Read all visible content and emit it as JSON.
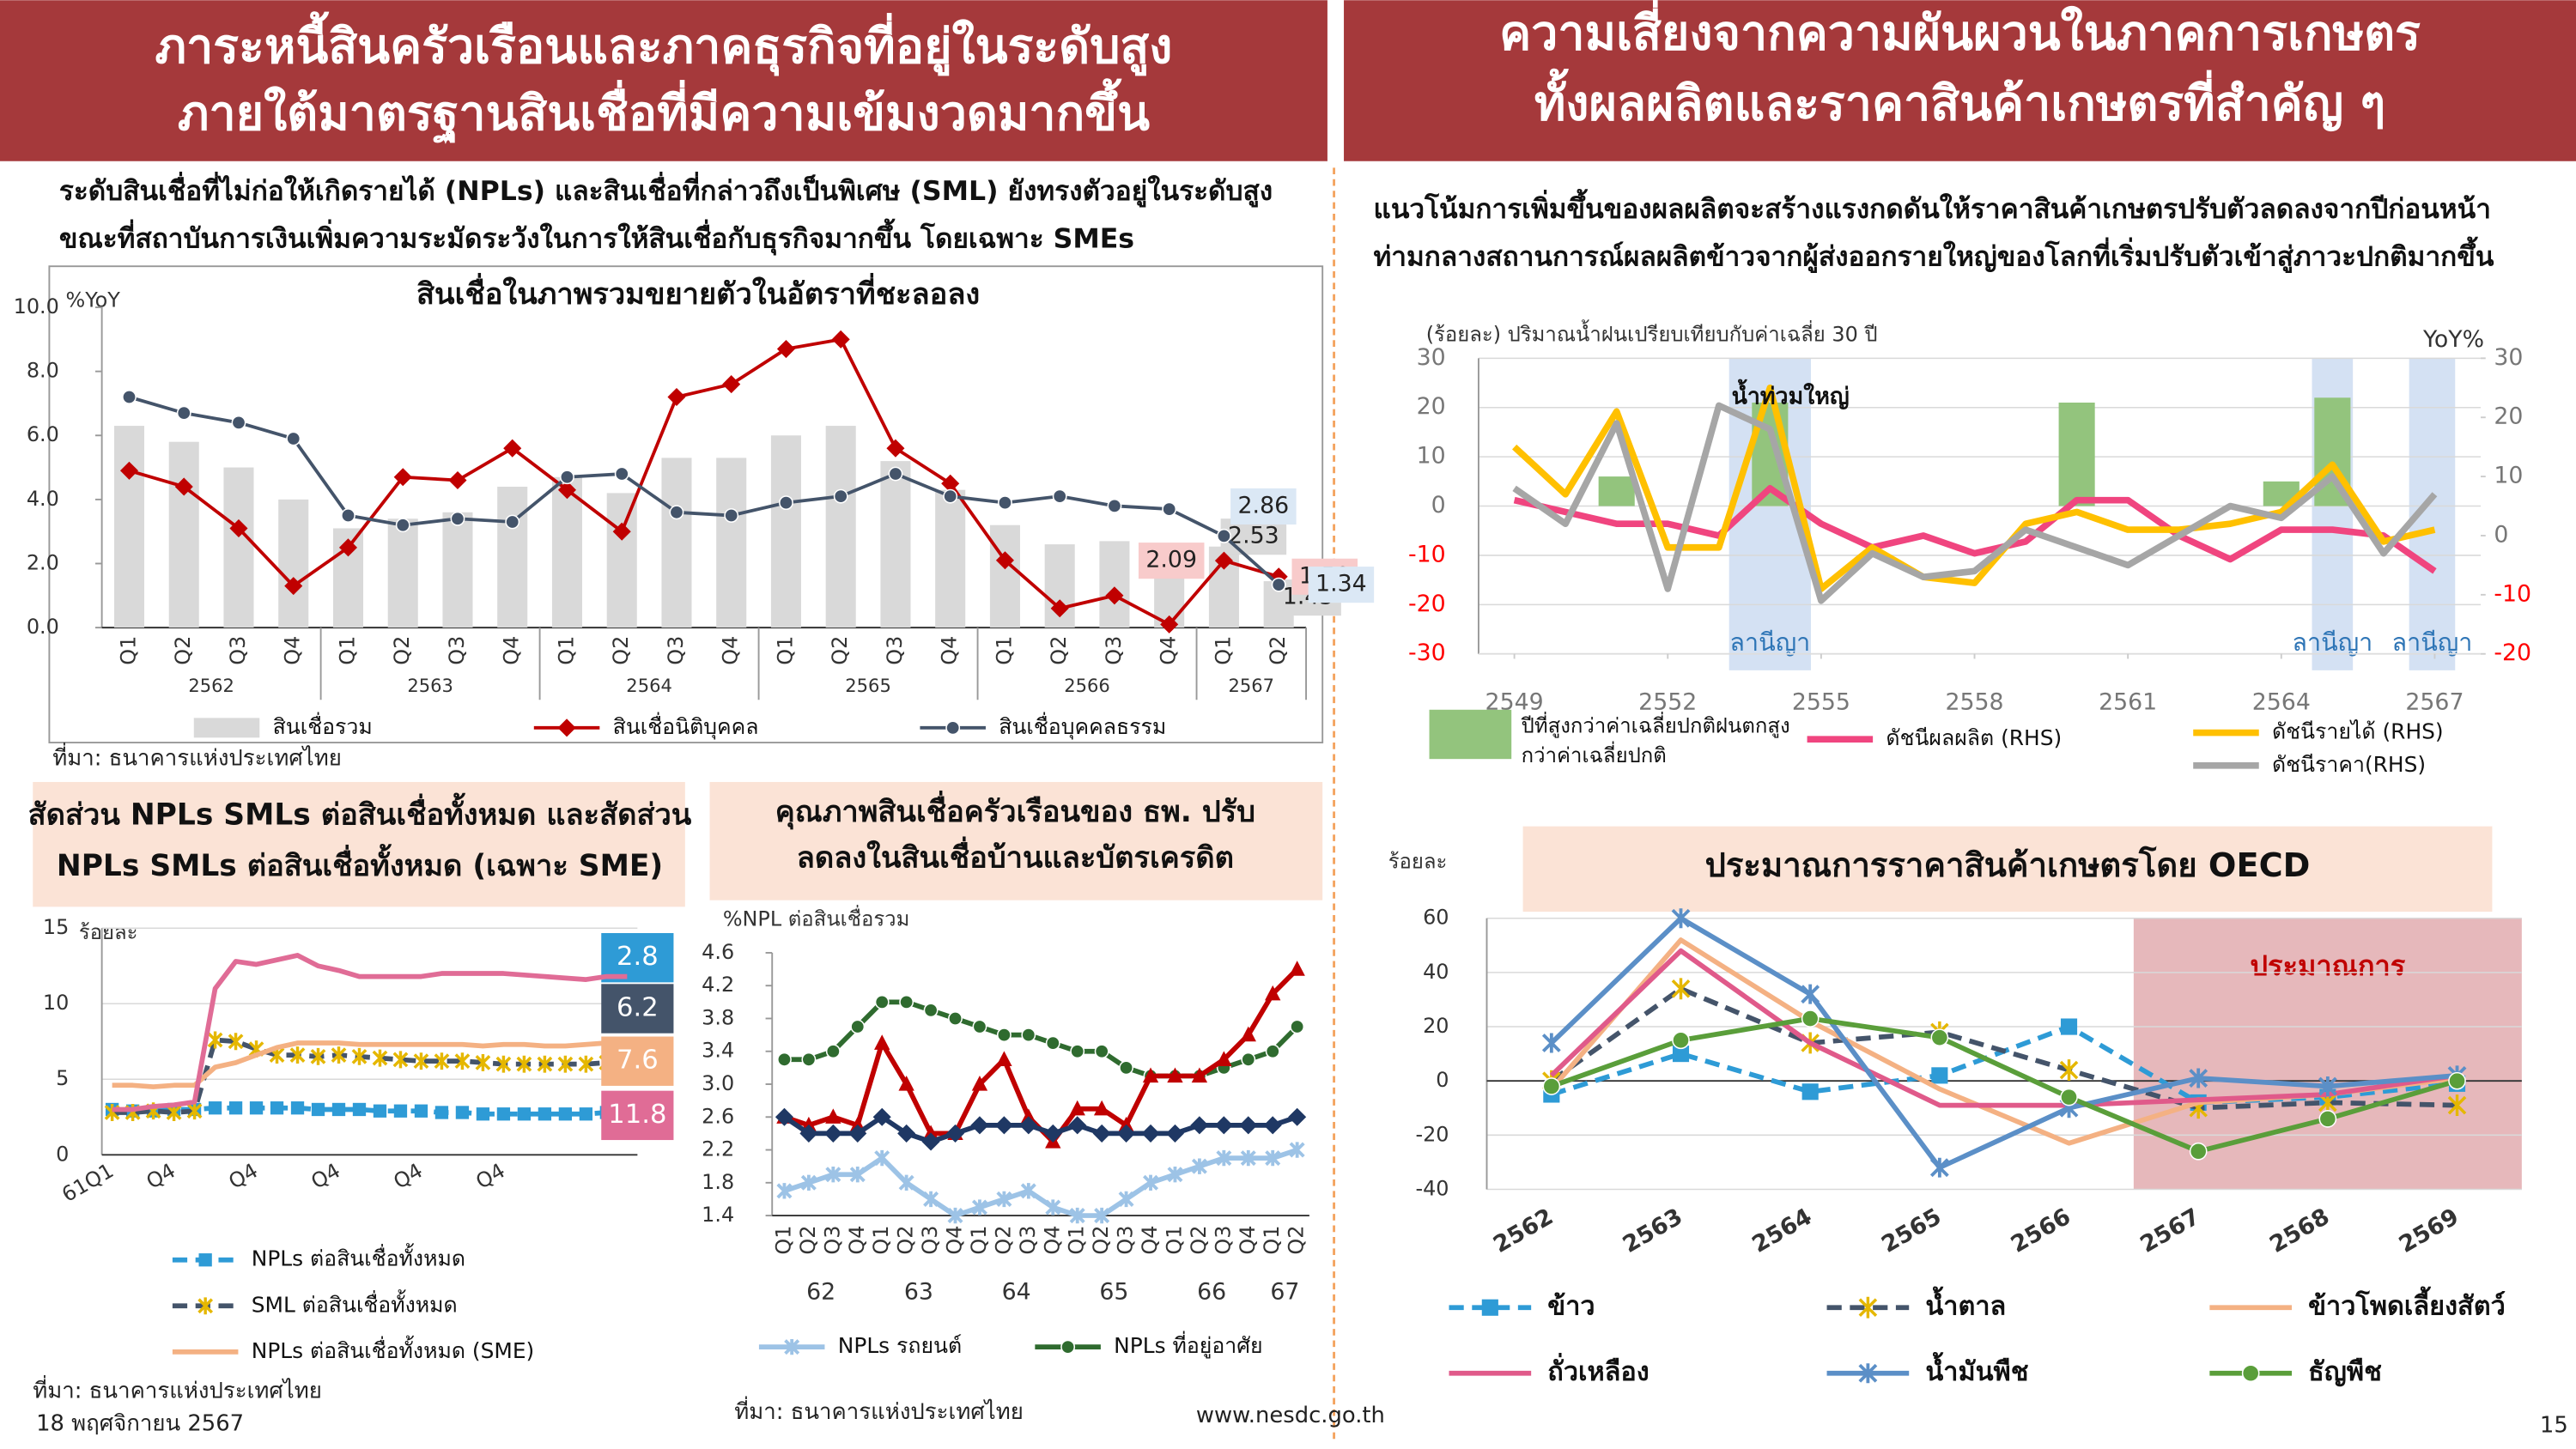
{
  "header": {
    "left": [
      "ภาระหนี้สินครัวเรือนและภาคธุรกิจที่อยู่ในระดับสูง",
      "ภายใต้มาตรฐานสินเชื่อที่มีความเข้มงวดมากขึ้น"
    ],
    "right": [
      "ความเสี่ยงจากความผันผวนในภาคการเกษตร",
      "ทั้งผลผลิตและราคาสินค้าเกษตรที่สำคัญ ๆ"
    ]
  },
  "intro": {
    "left": [
      "ระดับสินเชื่อที่ไม่ก่อให้เกิดรายได้ (NPLs) และสินเชื่อที่กล่าวถึงเป็นพิเศษ (SML) ยังทรงตัวอยู่ในระดับสูง",
      "ขณะที่สถาบันการเงินเพิ่มความระมัดระวังในการให้สินเชื่อกับธุรกิจมากขึ้น โดยเฉพาะ SMEs"
    ],
    "right": [
      "แนวโน้มการเพิ่มขึ้นของผลผลิตจะสร้างแรงกดดันให้ราคาสินค้าเกษตรปรับตัวลดลงจากปีก่อนหน้า",
      "ท่ามกลางสถานการณ์ผลผลิตข้าวจากผู้ส่งออกรายใหญ่ของโลกที่เริ่มปรับตัวเข้าสู่ภาวะปกติมากขึ้น"
    ]
  },
  "sources": [
    "ที่มา: ธนาคารแห่งประเทศไทย",
    "ที่มา: ธนาคารแห่งประเทศไทย",
    "ที่มา: ธนาคารแห่งประเทศไทย"
  ],
  "footer": {
    "date": "18 พฤศจิกายน 2567",
    "url": "www.nesdc.go.th",
    "page": "15"
  },
  "chart_data": [
    {
      "type": "combo",
      "title": [
        "สินเชื่อในภาพรวมขยายตัวในอัตราที่ชะลอลง"
      ],
      "y_label": "%YoY",
      "categories": [
        "Q1",
        "Q2",
        "Q3",
        "Q4",
        "Q1",
        "Q2",
        "Q3",
        "Q4",
        "Q1",
        "Q2",
        "Q3",
        "Q4",
        "Q1",
        "Q2",
        "Q3",
        "Q4",
        "Q1",
        "Q2",
        "Q3",
        "Q4",
        "Q1",
        "Q2"
      ],
      "x_groups": [
        "2562",
        "2563",
        "2564",
        "2565",
        "2566",
        "2567"
      ],
      "ylim": [
        0,
        10
      ],
      "yticks": [
        {
          "value": 0,
          "label": "0.0"
        },
        {
          "value": 2,
          "label": "2.0"
        },
        {
          "value": 4,
          "label": "4.0"
        },
        {
          "value": 6,
          "label": "6.0"
        },
        {
          "value": 8,
          "label": "8.0"
        },
        {
          "value": 10,
          "label": "10.0"
        }
      ],
      "grid": false,
      "series": [
        {
          "name": "สินเชื่อรวม",
          "kind": "bar",
          "color": "#d9d9d9",
          "values": [
            6.3,
            5.8,
            5.0,
            4.0,
            3.1,
            3.4,
            3.6,
            4.4,
            4.7,
            4.2,
            5.3,
            5.3,
            6.0,
            6.3,
            5.2,
            4.3,
            3.2,
            2.6,
            2.7,
            2.1,
            2.53,
            1.45
          ]
        },
        {
          "name": "สินเชื่อนิติบุคคล",
          "kind": "line",
          "marker": "diamond",
          "color": "#c00000",
          "values": [
            4.9,
            4.4,
            3.1,
            1.3,
            2.5,
            4.7,
            4.6,
            5.6,
            4.3,
            3.0,
            7.2,
            7.6,
            8.7,
            9.0,
            5.6,
            4.5,
            2.1,
            0.6,
            1.0,
            0.1,
            2.09,
            1.59
          ]
        },
        {
          "name": "สินเชื่อบุคคลธรรม",
          "kind": "line",
          "marker": "circle",
          "color": "#44546a",
          "values": [
            7.2,
            6.7,
            6.4,
            5.9,
            3.5,
            3.2,
            3.4,
            3.3,
            4.7,
            4.8,
            3.6,
            3.5,
            3.9,
            4.1,
            4.8,
            4.1,
            3.9,
            4.1,
            3.8,
            3.7,
            2.86,
            1.34
          ]
        }
      ]
    },
    {
      "type": "line",
      "title": [
        "สัดส่วน NPLs SMLs ต่อสินเชื่อทั้งหมด และสัดส่วน",
        "NPLs SMLs ต่อสินเชื่อทั้งหมด (เฉพาะ SME)"
      ],
      "y_label": "ร้อยละ",
      "categories": [
        "61Q1",
        null,
        null,
        "Q4",
        null,
        null,
        null,
        "Q4",
        null,
        null,
        null,
        "Q4",
        null,
        null,
        null,
        "Q4",
        null,
        null,
        null,
        "Q4",
        null,
        null,
        null,
        null,
        null,
        null
      ],
      "ylim": [
        0,
        15
      ],
      "yticks": [
        0,
        5,
        10,
        15
      ],
      "grid": true,
      "series": [
        {
          "name": "NPLs ต่อสินเชื่อทั้งหมด",
          "kind": "line",
          "marker": "square",
          "dash": true,
          "color": "#2e9bd6",
          "values": [
            3.0,
            2.9,
            2.9,
            3.0,
            3.0,
            3.1,
            3.1,
            3.1,
            3.1,
            3.1,
            3.0,
            3.0,
            3.0,
            2.9,
            2.9,
            2.9,
            2.8,
            2.8,
            2.7,
            2.7,
            2.7,
            2.7,
            2.7,
            2.7,
            2.8,
            2.8
          ]
        },
        {
          "name": "SML ต่อสินเชื่อทั้งหมด",
          "kind": "line",
          "marker": "star",
          "marker_color": "#e5b700",
          "dash": true,
          "color": "#44546a",
          "values": [
            2.8,
            2.8,
            2.9,
            2.8,
            2.9,
            7.6,
            7.5,
            7.0,
            6.6,
            6.6,
            6.5,
            6.6,
            6.5,
            6.4,
            6.3,
            6.2,
            6.2,
            6.2,
            6.1,
            6.0,
            6.0,
            6.0,
            6.0,
            6.0,
            6.1,
            6.2
          ]
        },
        {
          "name": "NPLs ต่อสินเชื่อทั้งหมด (SME)",
          "kind": "line",
          "marker": "none",
          "color": "#f4b183",
          "values": [
            4.6,
            4.6,
            4.5,
            4.6,
            4.6,
            5.8,
            6.1,
            6.6,
            7.1,
            7.4,
            7.4,
            7.4,
            7.3,
            7.3,
            7.3,
            7.3,
            7.3,
            7.3,
            7.2,
            7.3,
            7.3,
            7.2,
            7.2,
            7.3,
            7.4,
            7.6
          ]
        },
        {
          "kind": "line",
          "marker": "none",
          "color": "#e06c96",
          "values": [
            3.0,
            3.0,
            3.2,
            3.3,
            3.5,
            11.0,
            12.8,
            12.6,
            12.9,
            13.2,
            12.5,
            12.2,
            11.8,
            11.8,
            11.8,
            11.8,
            12.0,
            12.0,
            12.0,
            12.0,
            11.9,
            11.8,
            11.7,
            11.6,
            11.8,
            11.8
          ]
        }
      ]
    },
    {
      "type": "line",
      "title": [
        "คุณภาพสินเชื่อครัวเรือนของ ธพ. ปรับ",
        "ลดลงในสินเชื่อบ้านและบัตรเครดิต"
      ],
      "y_label": "%NPL ต่อสินเชื่อรวม",
      "categories": [
        "Q1",
        "Q2",
        "Q3",
        "Q4",
        "Q1",
        "Q2",
        "Q3",
        "Q4",
        "Q1",
        "Q2",
        "Q3",
        "Q4",
        "Q1",
        "Q2",
        "Q3",
        "Q4",
        "Q1",
        "Q2",
        "Q3",
        "Q4",
        "Q1",
        "Q2"
      ],
      "x_groups": [
        "62",
        "63",
        "64",
        "65",
        "66",
        "67"
      ],
      "ylim": [
        1.4,
        4.6
      ],
      "yticks": [
        1.4,
        1.8,
        2.2,
        2.6,
        {
          "value": 3,
          "label": "3.0"
        },
        3.4,
        3.8,
        4.2,
        4.6
      ],
      "grid": false,
      "series": [
        {
          "name": "NPLs รถยนต์",
          "kind": "line",
          "marker": "x",
          "color": "#9dc3e6",
          "values": [
            1.7,
            1.8,
            1.9,
            1.9,
            2.1,
            1.8,
            1.6,
            1.4,
            1.5,
            1.6,
            1.7,
            1.5,
            1.4,
            1.4,
            1.6,
            1.8,
            1.9,
            2.0,
            2.1,
            2.1,
            2.1,
            2.2
          ]
        },
        {
          "name": "NPLs ที่อยู่อาศัย",
          "kind": "line",
          "marker": "circle",
          "color": "#2f6b2f",
          "values": [
            3.3,
            3.3,
            3.4,
            3.7,
            4.0,
            4.0,
            3.9,
            3.8,
            3.7,
            3.6,
            3.6,
            3.5,
            3.4,
            3.4,
            3.2,
            3.1,
            3.1,
            3.1,
            3.2,
            3.3,
            3.4,
            3.7
          ]
        },
        {
          "kind": "line",
          "marker": "triangle",
          "color": "#c00000",
          "values": [
            2.6,
            2.5,
            2.6,
            2.5,
            3.5,
            3.0,
            2.4,
            2.4,
            3.0,
            3.3,
            2.6,
            2.3,
            2.7,
            2.7,
            2.5,
            3.1,
            3.1,
            3.1,
            3.3,
            3.6,
            4.1,
            4.4
          ]
        },
        {
          "kind": "line",
          "marker": "diamond",
          "color": "#1f3864",
          "values": [
            2.6,
            2.4,
            2.4,
            2.4,
            2.6,
            2.4,
            2.3,
            2.4,
            2.5,
            2.5,
            2.5,
            2.4,
            2.5,
            2.4,
            2.4,
            2.4,
            2.4,
            2.5,
            2.5,
            2.5,
            2.5,
            2.6
          ]
        }
      ]
    },
    {
      "type": "combo",
      "y_label": "(ร้อยละ) ปริมาณน้ำฝนเปรียบเทียบกับค่าเฉลี่ย 30 ปี",
      "y2_label": "YoY%",
      "x": [
        2549,
        2550,
        2551,
        2552,
        2553,
        2554,
        2555,
        2556,
        2557,
        2558,
        2559,
        2560,
        2561,
        2562,
        2563,
        2564,
        2565,
        2566,
        2567
      ],
      "xlim": [
        2548.3,
        2567.9
      ],
      "xticks": [
        2549,
        2552,
        2555,
        2558,
        2561,
        2564,
        2567
      ],
      "ylim": [
        -30,
        30
      ],
      "yticks": [
        -30,
        -20,
        -10,
        0,
        10,
        20,
        30
      ],
      "y2lim": [
        -20,
        30
      ],
      "y2ticks": [
        -20,
        -10,
        0,
        10,
        20,
        30
      ],
      "grid": true,
      "negative_tick_color": "#ff0000",
      "bands": [
        {
          "label": "ลานีญา",
          "x": [
            2553.2,
            2554.8
          ]
        },
        {
          "label": "ลานีญา",
          "x": [
            2564.6,
            2565.4
          ]
        },
        {
          "label": "ลานีญา",
          "x": [
            2566.5,
            2567.4
          ]
        }
      ],
      "annotations": [
        {
          "text": "น้ำท่วมใหญ่",
          "x": 2554.4,
          "y": 22
        }
      ],
      "series": [
        {
          "name": "ปีที่สูงกว่าค่าเฉลี่ยปกติฝนตกสูงกว่าค่าเฉลี่ยปกติ",
          "kind": "bar",
          "color": "#93c47d",
          "values": [
            null,
            null,
            6,
            null,
            null,
            21,
            null,
            null,
            null,
            null,
            null,
            21,
            null,
            null,
            null,
            5,
            22,
            null,
            null
          ]
        },
        {
          "name": "ดัชนีผลผลิต (RHS)",
          "kind": "line",
          "marker": "none",
          "axis": "y2",
          "color": "#f0457f",
          "values": [
            6,
            4,
            2,
            2,
            0,
            8,
            2,
            -2,
            0,
            -3,
            -1,
            6,
            6,
            0,
            -4,
            1,
            1,
            0,
            -6
          ]
        },
        {
          "name": "ดัชนีรายได้ (RHS)",
          "kind": "line",
          "marker": "none",
          "axis": "y2",
          "color": "#ffc000",
          "values": [
            15,
            7,
            21,
            -2,
            -2,
            25,
            -9,
            -2,
            -7,
            -8,
            2,
            4,
            1,
            1,
            2,
            4,
            12,
            -1,
            1
          ]
        },
        {
          "name": "ดัชนีราคา(RHS)",
          "kind": "line",
          "marker": "none",
          "axis": "y2",
          "color": "#a6a6a6",
          "values": [
            8,
            2,
            19,
            -9,
            22,
            18,
            -11,
            -3,
            -7,
            -6,
            1,
            -2,
            -5,
            0,
            5,
            3,
            10,
            -3,
            7
          ]
        }
      ]
    },
    {
      "type": "line",
      "title": [
        "ประมาณการราคาสินค้าเกษตรโดย OECD"
      ],
      "y_label": "ร้อยละ",
      "categories": [
        "2562",
        "2563",
        "2564",
        "2565",
        "2566",
        "2567",
        "2568",
        "2569"
      ],
      "ylim": [
        -40,
        60
      ],
      "yticks": [
        -40,
        -20,
        0,
        20,
        40,
        60
      ],
      "grid": true,
      "shade": {
        "from": "2567",
        "to": "2569",
        "label": "ประมาณการ",
        "color": "#e6b8bb"
      },
      "series": [
        {
          "name": "ข้าว",
          "kind": "line",
          "marker": "square",
          "dash": true,
          "color": "#2e9bd6",
          "values": [
            -5,
            10,
            -4,
            2,
            20,
            -8,
            -6,
            -1
          ]
        },
        {
          "name": "น้ำตาล",
          "kind": "line",
          "marker": "star",
          "marker_color": "#e5b700",
          "dash": true,
          "color": "#44546a",
          "values": [
            0,
            34,
            14,
            18,
            4,
            -10,
            -8,
            -9
          ]
        },
        {
          "name": "ข้าวโพดเลี้ยงสัตว์",
          "kind": "line",
          "marker": "none",
          "color": "#f4b183",
          "values": [
            -3,
            52,
            22,
            -3,
            -23,
            -8,
            -5,
            1
          ]
        },
        {
          "name": "ถั่วเหลือง",
          "kind": "line",
          "marker": "none",
          "color": "#e05a8a",
          "values": [
            2,
            48,
            14,
            -9,
            -9,
            -7,
            -5,
            2
          ]
        },
        {
          "name": "น้ำมันพืช",
          "kind": "line",
          "marker": "x",
          "color": "#5b8fc7",
          "values": [
            14,
            60,
            32,
            -32,
            -10,
            1,
            -2,
            2
          ]
        },
        {
          "name": "ธัญพืช",
          "kind": "line",
          "marker": "circle",
          "color": "#5a9e3a",
          "values": [
            -2,
            15,
            23,
            16,
            -6,
            -26,
            -14,
            0
          ]
        }
      ]
    }
  ]
}
